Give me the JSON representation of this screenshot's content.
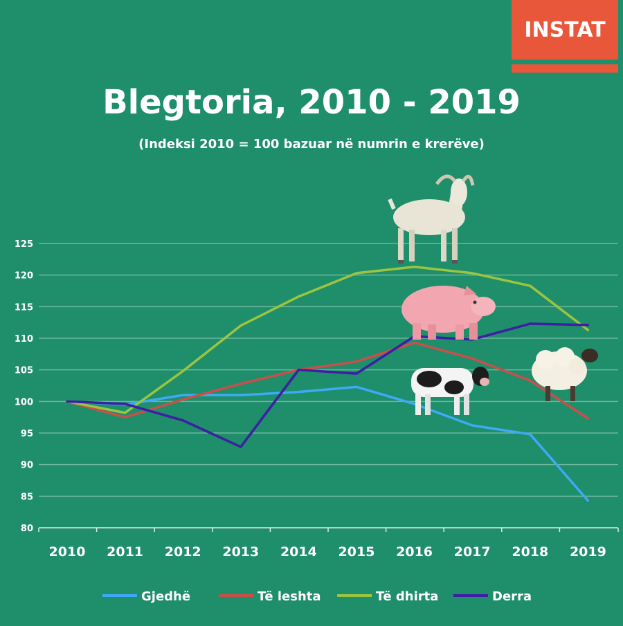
{
  "header": {
    "logo_text": "INSTAT",
    "title": "Blegtoria, 2010 - 2019",
    "subtitle": "(Indeksi 2010 = 100 bazuar në numrin e krerëve)"
  },
  "colors": {
    "background": "#1f8e6b",
    "logo": "#e8573a",
    "grid": "#6fb69d"
  },
  "chart_data": {
    "type": "line",
    "x": [
      "2010",
      "2011",
      "2012",
      "2013",
      "2014",
      "2015",
      "2016",
      "2017",
      "2018",
      "2019"
    ],
    "yticks": [
      80,
      85,
      90,
      95,
      100,
      105,
      110,
      115,
      120,
      125
    ],
    "ylim": [
      80,
      125
    ],
    "grid": true,
    "legend_position": "bottom",
    "series": [
      {
        "name": "Gjedhë",
        "color": "#3fa9f5",
        "values": [
          100,
          99.5,
          101,
          101,
          101.5,
          102.3,
          99.6,
          96.2,
          94.8,
          84.3
        ]
      },
      {
        "name": "Të leshta",
        "color": "#c9504a",
        "values": [
          100,
          97.5,
          100.3,
          102.8,
          105,
          106.3,
          109.3,
          106.8,
          103.3,
          97.3
        ]
      },
      {
        "name": "Të dhirta",
        "color": "#9bc540",
        "values": [
          100,
          98.2,
          104.8,
          112,
          116.6,
          120.3,
          121.3,
          120.3,
          118.3,
          111.3
        ]
      },
      {
        "name": "Derra",
        "color": "#3d1fa3",
        "values": [
          100,
          99.6,
          97,
          92.8,
          105,
          104.4,
          110.3,
          109.8,
          112.3,
          112.1
        ]
      }
    ]
  },
  "decorations": [
    "goat-illustration",
    "pig-illustration",
    "cow-illustration",
    "sheep-illustration"
  ]
}
